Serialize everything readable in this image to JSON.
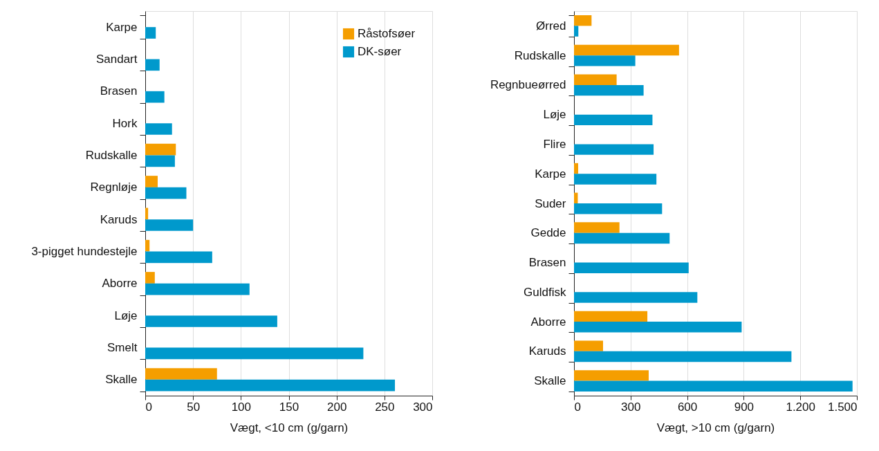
{
  "chart_data": [
    {
      "type": "bar",
      "orientation": "horizontal",
      "xlabel": "Vægt, <10 cm (g/garn)",
      "categories": [
        "Karpe",
        "Sandart",
        "Brasen",
        "Hork",
        "Rudskalle",
        "Regnløje",
        "Karuds",
        "3-pigget hundestejle",
        "Aborre",
        "Løje",
        "Smelt",
        "Skalle"
      ],
      "series": [
        {
          "name": "Råstofsøer",
          "color": "#f59e00",
          "values": [
            null,
            null,
            null,
            null,
            32,
            13,
            3,
            4.5,
            10,
            null,
            null,
            75
          ]
        },
        {
          "name": "DK-søer",
          "color": "#0099cc",
          "values": [
            11,
            15,
            20,
            28,
            31,
            43,
            50,
            70,
            109,
            138,
            228,
            261
          ]
        }
      ],
      "xlim": [
        0,
        300
      ],
      "xticks": [
        0,
        50,
        100,
        150,
        200,
        250,
        300
      ],
      "grid": "x",
      "legend": "top right"
    },
    {
      "type": "bar",
      "orientation": "horizontal",
      "xlabel": "Vægt, >10 cm (g/garn)",
      "categories": [
        "Ørred",
        "Rudskalle",
        "Regnbueørred",
        "Løje",
        "Flire",
        "Karpe",
        "Suder",
        "Gedde",
        "Brasen",
        "Guldfisk",
        "Aborre",
        "Karuds",
        "Skalle"
      ],
      "series": [
        {
          "color": "#f59e00",
          "values": [
            93,
            557,
            226,
            null,
            null,
            22,
            20,
            241,
            null,
            null,
            389,
            154,
            396
          ]
        },
        {
          "color": "#0099cc",
          "values": [
            23,
            325,
            369,
            416,
            422,
            437,
            467,
            507,
            608,
            654,
            889,
            1153,
            1477
          ]
        }
      ],
      "xlim": [
        0,
        1500
      ],
      "xticks": [
        0,
        300,
        600,
        900,
        {
          "value": 1200,
          "label": "1.200"
        },
        {
          "value": 1500,
          "label": "1.500"
        }
      ],
      "grid": "x"
    }
  ]
}
